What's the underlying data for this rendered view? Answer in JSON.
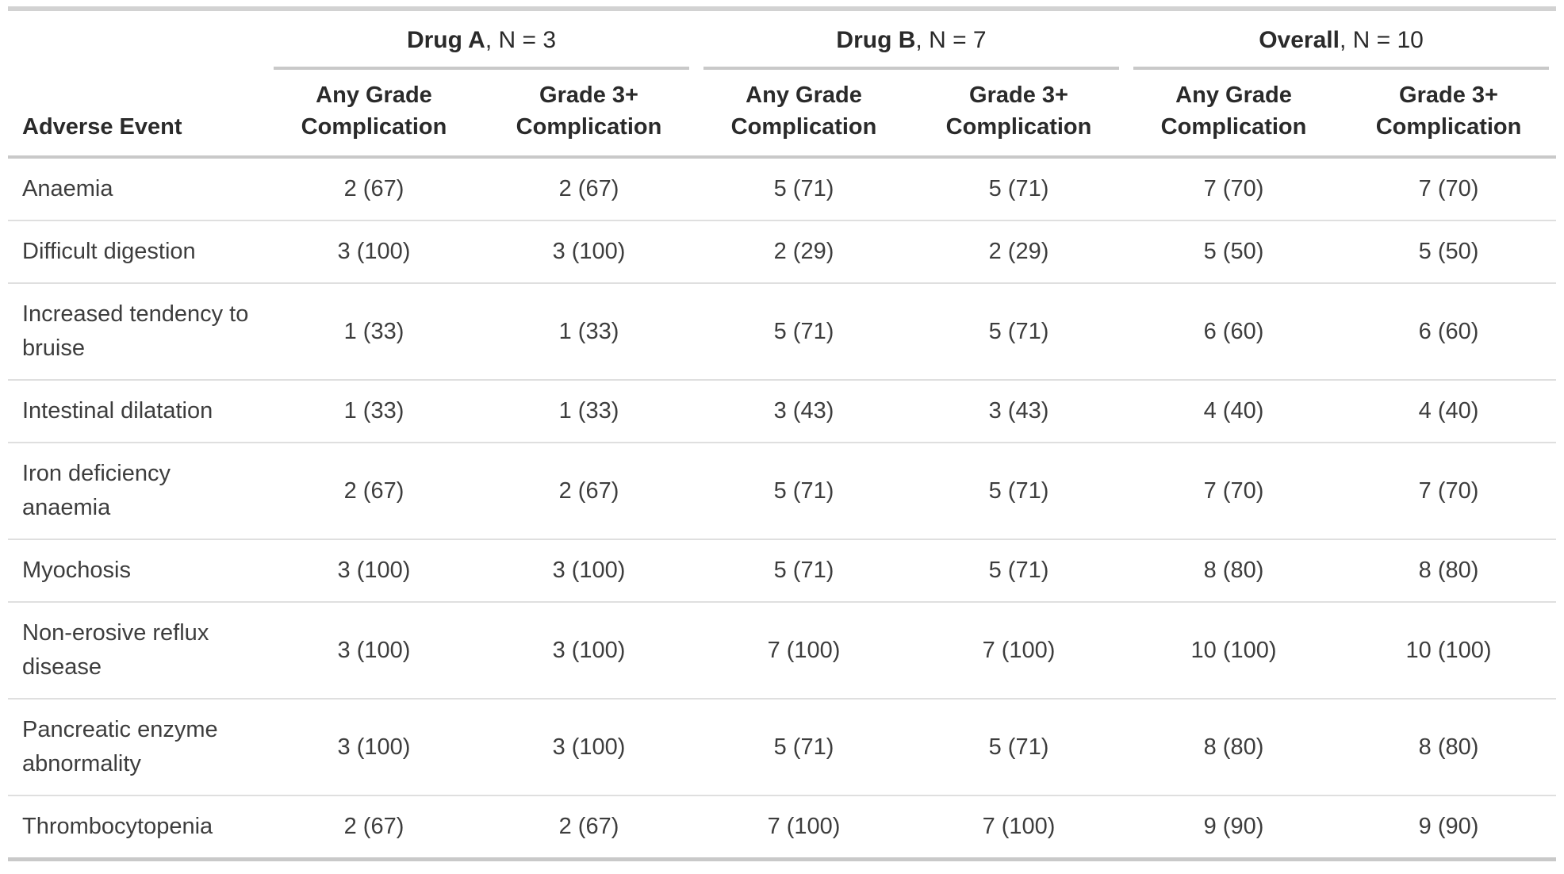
{
  "chart_data": {
    "type": "table",
    "row_header_label": "Adverse Event",
    "groups": [
      {
        "name": "Drug A",
        "n_suffix": ", N = 3"
      },
      {
        "name": "Drug B",
        "n_suffix": ", N = 7"
      },
      {
        "name": "Overall",
        "n_suffix": ", N = 10"
      }
    ],
    "subcolumns": {
      "any_grade": {
        "line1": "Any Grade",
        "line2": "Complication"
      },
      "grade3plus": {
        "line1": "Grade 3+",
        "line2": "Complication"
      }
    },
    "rows": [
      {
        "label": "Anaemia",
        "values": [
          "2 (67)",
          "2 (67)",
          "5 (71)",
          "5 (71)",
          "7 (70)",
          "7 (70)"
        ]
      },
      {
        "label": "Difficult digestion",
        "values": [
          "3 (100)",
          "3 (100)",
          "2 (29)",
          "2 (29)",
          "5 (50)",
          "5 (50)"
        ]
      },
      {
        "label": "Increased tendency to bruise",
        "values": [
          "1 (33)",
          "1 (33)",
          "5 (71)",
          "5 (71)",
          "6 (60)",
          "6 (60)"
        ]
      },
      {
        "label": "Intestinal dilatation",
        "values": [
          "1 (33)",
          "1 (33)",
          "3 (43)",
          "3 (43)",
          "4 (40)",
          "4 (40)"
        ]
      },
      {
        "label": "Iron deficiency anaemia",
        "values": [
          "2 (67)",
          "2 (67)",
          "5 (71)",
          "5 (71)",
          "7 (70)",
          "7 (70)"
        ]
      },
      {
        "label": "Myochosis",
        "values": [
          "3 (100)",
          "3 (100)",
          "5 (71)",
          "5 (71)",
          "8 (80)",
          "8 (80)"
        ]
      },
      {
        "label": "Non-erosive reflux disease",
        "values": [
          "3 (100)",
          "3 (100)",
          "7 (100)",
          "7 (100)",
          "10 (100)",
          "10 (100)"
        ]
      },
      {
        "label": "Pancreatic enzyme abnormality",
        "values": [
          "3 (100)",
          "3 (100)",
          "5 (71)",
          "5 (71)",
          "8 (80)",
          "8 (80)"
        ]
      },
      {
        "label": "Thrombocytopenia",
        "values": [
          "2 (67)",
          "2 (67)",
          "7 (100)",
          "7 (100)",
          "9 (90)",
          "9 (90)"
        ]
      }
    ],
    "colors": {
      "header_text": "#2a2a2a",
      "body_text": "#3d3d3d",
      "border_strong": "#c9c9c9",
      "border_light": "#dfdfdf"
    }
  }
}
